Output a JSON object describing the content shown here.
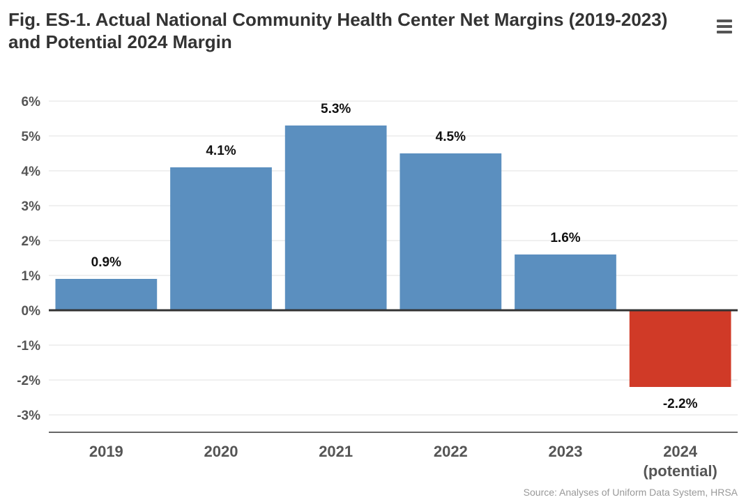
{
  "header": {
    "title_line1": "Fig. ES-1. Actual National Community Health Center Net Margins (2019-2023)",
    "title_line2": "and Potential 2024 Margin"
  },
  "menu": {
    "icon": "hamburger-menu-icon"
  },
  "source": "Source: Analyses of Uniform Data System, HRSA",
  "colors": {
    "positive_bar": "#5b8fbf",
    "negative_bar": "#d03a27",
    "grid": "#e2e2e2",
    "zero_line": "#333333",
    "axis": "#333333"
  },
  "chart_data": {
    "type": "bar",
    "title": "Fig. ES-1. Actual National Community Health Center Net Margins (2019-2023) and Potential 2024 Margin",
    "xlabel": "",
    "ylabel": "",
    "categories": [
      "2019",
      "2020",
      "2021",
      "2022",
      "2023",
      "2024\n(potential)"
    ],
    "values": [
      0.9,
      4.1,
      5.3,
      4.5,
      1.6,
      -2.2
    ],
    "data_labels": [
      "0.9%",
      "4.1%",
      "5.3%",
      "4.5%",
      "1.6%",
      "-2.2%"
    ],
    "ylim": [
      -3.5,
      6.5
    ],
    "yticks": [
      6,
      5,
      4,
      3,
      2,
      1,
      0,
      -1,
      -2,
      -3
    ],
    "ytick_labels": [
      "6%",
      "5%",
      "4%",
      "3%",
      "2%",
      "1%",
      "0%",
      "-1%",
      "-2%",
      "-3%"
    ],
    "grid": true,
    "legend": "none"
  }
}
